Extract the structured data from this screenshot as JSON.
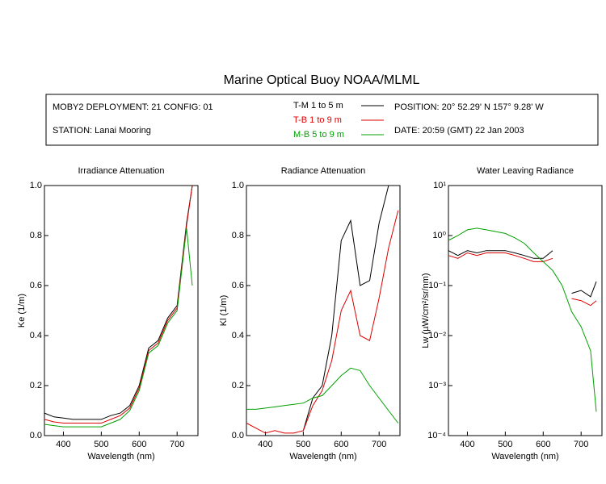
{
  "header": {
    "title": "Marine Optical Buoy NOAA/MLML",
    "deployment": "MOBY2 DEPLOYMENT: 21 CONFIG: 01",
    "station": "STATION: Lanai Mooring",
    "position": "POSITION: 20° 52.29' N   157° 9.28' W",
    "date": "DATE: 20:59 (GMT) 22 Jan 2003"
  },
  "chart_data": [
    {
      "type": "line",
      "title": "Irradiance Attenuation",
      "xlabel": "Wavelength (nm)",
      "ylabel": "Ke  (1/m)",
      "x": [
        350,
        375,
        400,
        425,
        450,
        475,
        500,
        525,
        550,
        575,
        600,
        625,
        650,
        675,
        700,
        725,
        740
      ],
      "series": [
        {
          "name": "T-M  1 to 5  m",
          "color": "#000000",
          "values": [
            0.09,
            0.075,
            0.07,
            0.065,
            0.065,
            0.065,
            0.065,
            0.08,
            0.09,
            0.12,
            0.2,
            0.35,
            0.38,
            0.47,
            0.52,
            0.85,
            1.0
          ]
        },
        {
          "name": "T-B  1 to 9  m",
          "color": "#dd0000",
          "values": [
            0.065,
            0.055,
            0.05,
            0.05,
            0.05,
            0.05,
            0.05,
            0.065,
            0.08,
            0.11,
            0.19,
            0.34,
            0.37,
            0.46,
            0.51,
            0.84,
            1.0
          ]
        },
        {
          "name": "M-B  5 to 9  m",
          "color": "#00a000",
          "values": [
            0.045,
            0.04,
            0.035,
            0.035,
            0.035,
            0.035,
            0.035,
            0.05,
            0.065,
            0.1,
            0.18,
            0.33,
            0.36,
            0.45,
            0.5,
            0.83,
            0.6
          ]
        }
      ],
      "xlim": [
        350,
        755
      ],
      "ylim": [
        0,
        1
      ],
      "xticks": [
        400,
        500,
        600,
        700
      ],
      "yticks": [
        {
          "value": 0,
          "label": "0.0"
        },
        {
          "value": 0.2,
          "label": "0.2"
        },
        {
          "value": 0.4,
          "label": "0.4"
        },
        {
          "value": 0.6,
          "label": "0.6"
        },
        {
          "value": 0.8,
          "label": "0.8"
        },
        {
          "value": 1,
          "label": "1.0"
        }
      ]
    },
    {
      "type": "line",
      "title": "Radiance Attenuation",
      "xlabel": "Wavelength (nm)",
      "ylabel": "Kl  (1/m)",
      "x": [
        350,
        375,
        400,
        425,
        450,
        475,
        500,
        525,
        550,
        575,
        600,
        625,
        650,
        675,
        700,
        725,
        750
      ],
      "series": [
        {
          "color": "#000000",
          "values": [
            null,
            null,
            null,
            null,
            null,
            null,
            0.02,
            0.15,
            0.2,
            0.4,
            0.78,
            0.86,
            0.6,
            0.62,
            0.85,
            1.0,
            null
          ]
        },
        {
          "color": "#dd0000",
          "values": [
            0.05,
            0.03,
            0.01,
            0.02,
            0.01,
            0.01,
            0.02,
            0.12,
            0.18,
            0.3,
            0.5,
            0.58,
            0.4,
            0.38,
            0.55,
            0.75,
            0.9
          ]
        },
        {
          "color": "#00a000",
          "values": [
            0.105,
            0.105,
            0.11,
            0.115,
            0.12,
            0.125,
            0.13,
            0.15,
            0.16,
            0.2,
            0.24,
            0.27,
            0.26,
            0.2,
            0.15,
            0.1,
            0.05
          ]
        }
      ],
      "xlim": [
        350,
        755
      ],
      "ylim": [
        0,
        1
      ],
      "xticks": [
        400,
        500,
        600,
        700
      ],
      "yticks": [
        {
          "value": 0,
          "label": "0.0"
        },
        {
          "value": 0.2,
          "label": "0.2"
        },
        {
          "value": 0.4,
          "label": "0.4"
        },
        {
          "value": 0.6,
          "label": "0.6"
        },
        {
          "value": 0.8,
          "label": "0.8"
        },
        {
          "value": 1,
          "label": "1.0"
        }
      ]
    },
    {
      "type": "line",
      "title": "Water Leaving Radiance",
      "xlabel": "Wavelength (nm)",
      "ylabel": "Lw  (µW/cm²/sr/nm)",
      "log_y": true,
      "x": [
        350,
        375,
        400,
        425,
        450,
        475,
        500,
        525,
        550,
        575,
        600,
        625,
        650,
        675,
        700,
        725,
        740
      ],
      "series": [
        {
          "color": "#000000",
          "values": [
            0.5,
            0.4,
            0.5,
            0.45,
            0.5,
            0.5,
            0.5,
            0.45,
            0.4,
            0.35,
            0.35,
            0.5,
            null,
            0.07,
            0.08,
            0.06,
            0.12
          ]
        },
        {
          "color": "#dd0000",
          "values": [
            0.4,
            0.35,
            0.45,
            0.4,
            0.45,
            0.45,
            0.45,
            0.4,
            0.35,
            0.3,
            0.3,
            0.35,
            null,
            0.055,
            0.05,
            0.04,
            0.05
          ]
        },
        {
          "color": "#00a000",
          "values": [
            0.8,
            1.0,
            1.3,
            1.4,
            1.3,
            1.2,
            1.1,
            0.9,
            0.7,
            0.45,
            0.3,
            0.2,
            0.1,
            0.03,
            0.015,
            0.005,
            0.0003
          ]
        }
      ],
      "xlim": [
        350,
        755
      ],
      "ylim": [
        0.0001,
        10
      ],
      "xticks": [
        400,
        500,
        600,
        700
      ],
      "yticks": [
        {
          "value": 10,
          "label": "10¹"
        },
        {
          "value": 1,
          "label": "10⁰"
        },
        {
          "value": 0.1,
          "label": "10⁻¹"
        },
        {
          "value": 0.01,
          "label": "10⁻²"
        },
        {
          "value": 0.001,
          "label": "10⁻³"
        },
        {
          "value": 0.0001,
          "label": "10⁻⁴"
        }
      ]
    }
  ]
}
